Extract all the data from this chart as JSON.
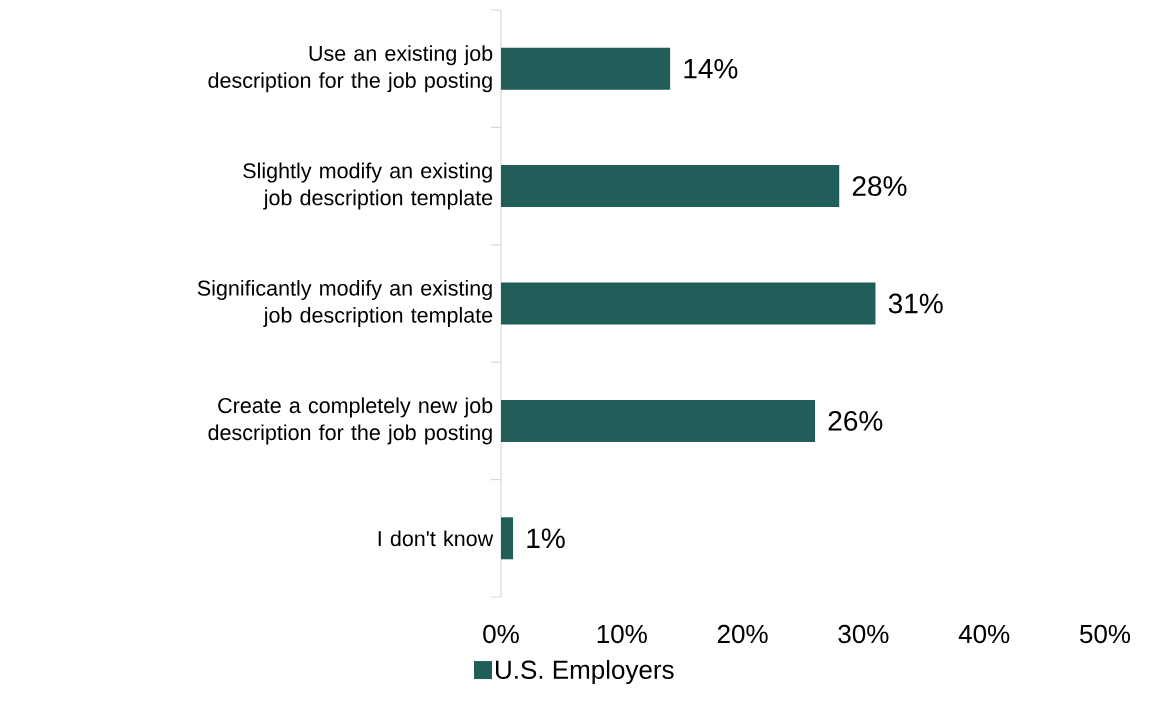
{
  "chart_data": {
    "type": "bar",
    "orientation": "horizontal",
    "categories": [
      "Use an existing job description for the job posting",
      "Slightly modify an existing job description template",
      "Significantly modify an existing job description template",
      "Create a completely new job description for the job posting",
      "I don't know"
    ],
    "series": [
      {
        "name": "U.S. Employers",
        "color": "#215e59",
        "values": [
          14,
          28,
          31,
          26,
          1
        ],
        "value_labels": [
          "14%",
          "28%",
          "31%",
          "26%",
          "1%"
        ]
      }
    ],
    "xlim": [
      0,
      50
    ],
    "xticks": [
      {
        "value": 0,
        "label": "0%"
      },
      {
        "value": 10,
        "label": "10%"
      },
      {
        "value": 20,
        "label": "20%"
      },
      {
        "value": 30,
        "label": "30%"
      },
      {
        "value": 40,
        "label": "40%"
      },
      {
        "value": 50,
        "label": "50%"
      }
    ],
    "legend": "bottom",
    "grid": false
  }
}
